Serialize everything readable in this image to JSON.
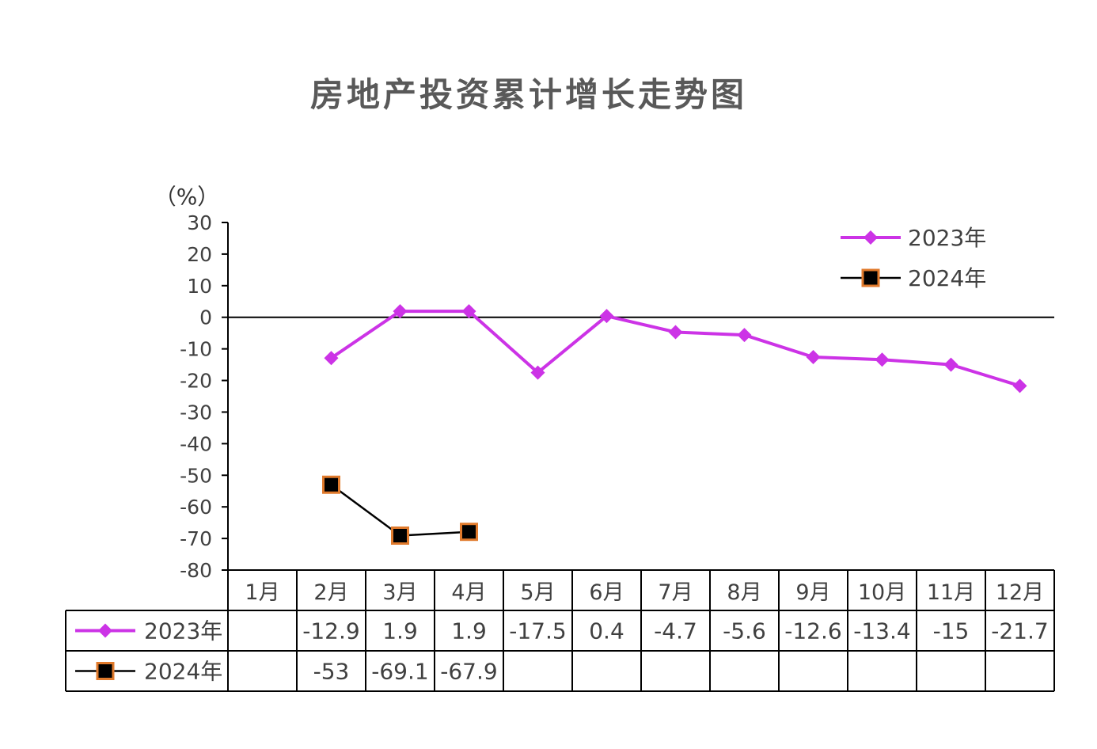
{
  "chart_data": {
    "type": "line",
    "title": "房地产投资累计增长走势图",
    "unit_label": "（%）",
    "yticks": [
      "30",
      "20",
      "10",
      "0",
      "-10",
      "-20",
      "-30",
      "-40",
      "-50",
      "-60",
      "-70",
      "-80"
    ],
    "ylim": [
      -80,
      30
    ],
    "categories": [
      "1月",
      "2月",
      "3月",
      "4月",
      "5月",
      "6月",
      "7月",
      "8月",
      "9月",
      "10月",
      "11月",
      "12月"
    ],
    "series": [
      {
        "name": "2023年",
        "color": "#CC33E6",
        "marker": "diamond",
        "values": [
          null,
          -12.9,
          1.9,
          1.9,
          -17.5,
          0.4,
          -4.7,
          -5.6,
          -12.6,
          -13.4,
          -15,
          -21.7
        ],
        "labels": [
          "",
          "-12.9",
          "1.9",
          "1.9",
          "-17.5",
          "0.4",
          "-4.7",
          "-5.6",
          "-12.6",
          "-13.4",
          "-15",
          "-21.7"
        ]
      },
      {
        "name": "2024年",
        "color": "#000000",
        "marker": "square",
        "marker_edge": "#E07A2C",
        "values": [
          null,
          -53,
          -69.1,
          -67.9,
          null,
          null,
          null,
          null,
          null,
          null,
          null,
          null
        ],
        "labels": [
          "",
          "-53",
          "-69.1",
          "-67.9",
          "",
          "",
          "",
          "",
          "",
          "",
          "",
          ""
        ]
      }
    ],
    "legend_position": "top-right",
    "grid": false,
    "data_table": true
  }
}
